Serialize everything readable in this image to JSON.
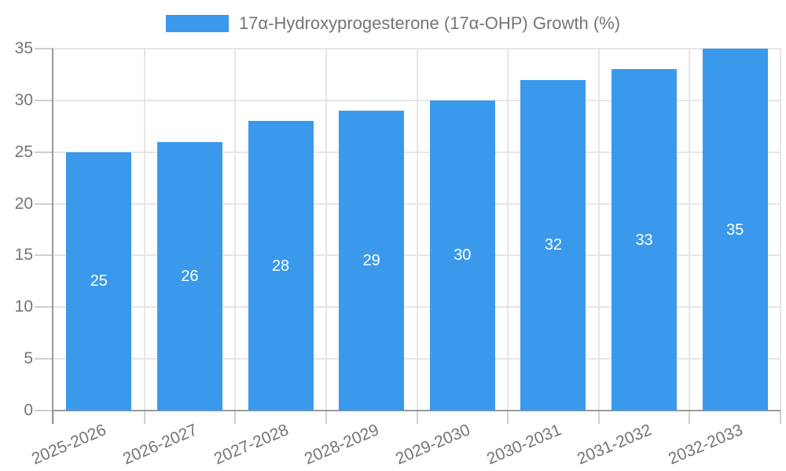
{
  "legend": {
    "label": "17α-Hydroxyprogesterone (17α-OHP) Growth (%)"
  },
  "chart_data": {
    "type": "bar",
    "title": "17α-Hydroxyprogesterone (17α-OHP) Growth (%)",
    "categories": [
      "2025-2026",
      "2026-2027",
      "2027-2028",
      "2028-2029",
      "2029-2030",
      "2030-2031",
      "2031-2032",
      "2032-2033"
    ],
    "values": [
      25,
      26,
      28,
      29,
      30,
      32,
      33,
      35
    ],
    "value_labels": [
      "25",
      "26",
      "28",
      "29",
      "30",
      "32",
      "33",
      "35"
    ],
    "xlabel": "",
    "ylabel": "",
    "ylim": [
      0,
      35
    ],
    "yticks": [
      0,
      5,
      10,
      15,
      20,
      25,
      30,
      35
    ],
    "grid": true,
    "legend_position": "top-center",
    "colors": {
      "bar": "#3B99EC",
      "gridline": "#e6e6e6",
      "axis_line": "#9a9a9a",
      "tick": "#cfcfcf",
      "axis_text": "#757575",
      "bar_value_text": "#ffffff"
    }
  }
}
